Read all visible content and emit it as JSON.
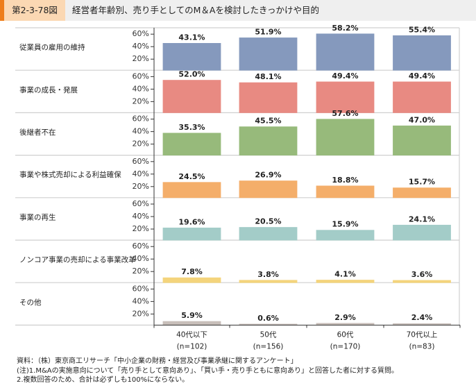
{
  "header": {
    "figure_number": "第2-3-78図",
    "title": "経営者年齢別、売り手としてのM＆Aを検討したきっかけや目的"
  },
  "colors": {
    "accent": "#ee7d1a",
    "tag_bg": "#fbd8b3",
    "header_bg": "#efefef"
  },
  "chart_data": {
    "type": "bar",
    "title": "経営者年齢別、売り手としてのM＆Aを検討したきっかけや目的",
    "categories": [
      "40代以下",
      "50代",
      "60代",
      "70代以上"
    ],
    "category_n": [
      "(n=102)",
      "(n=156)",
      "(n=170)",
      "(n=83)"
    ],
    "ylim": [
      0,
      65
    ],
    "yticks": [
      20,
      40,
      60
    ],
    "ytick_labels": [
      "20%",
      "40%",
      "60%"
    ],
    "grid": false,
    "legend": "none",
    "series": [
      {
        "name": "従業員の雇用の維持",
        "color": "#8599bd",
        "values": [
          43.1,
          51.9,
          58.2,
          55.4
        ],
        "labels": [
          "43.1%",
          "51.9%",
          "58.2%",
          "55.4%"
        ]
      },
      {
        "name": "事業の成長・発展",
        "color": "#e88a82",
        "values": [
          52.0,
          48.1,
          49.4,
          49.4
        ],
        "labels": [
          "52.0%",
          "48.1%",
          "49.4%",
          "49.4%"
        ]
      },
      {
        "name": "後継者不在",
        "color": "#97ba7b",
        "values": [
          35.3,
          45.5,
          57.6,
          47.0
        ],
        "labels": [
          "35.3%",
          "45.5%",
          "57.6%",
          "47.0%"
        ]
      },
      {
        "name": "事業や株式売却による利益確保",
        "color": "#f4ae6a",
        "values": [
          24.5,
          26.9,
          18.8,
          15.7
        ],
        "labels": [
          "24.5%",
          "26.9%",
          "18.8%",
          "15.7%"
        ]
      },
      {
        "name": "事業の再生",
        "color": "#a3ccc8",
        "values": [
          19.6,
          20.5,
          15.9,
          24.1
        ],
        "labels": [
          "19.6%",
          "20.5%",
          "15.9%",
          "24.1%"
        ]
      },
      {
        "name": "ノンコア事業の売却による事業改革",
        "color": "#f4d47c",
        "values": [
          7.8,
          3.8,
          4.1,
          3.6
        ],
        "labels": [
          "7.8%",
          "3.8%",
          "4.1%",
          "3.6%"
        ]
      },
      {
        "name": "その他",
        "color": "#c8bfba",
        "values": [
          5.9,
          0.6,
          2.9,
          2.4
        ],
        "labels": [
          "5.9%",
          "0.6%",
          "2.9%",
          "2.4%"
        ]
      }
    ]
  },
  "footer": {
    "source": "資料：（株）東京商工リサーチ「中小企業の財務・経営及び事業承継に関するアンケート」",
    "note1": "(注)1.M&Aの実施意向について「売り手として意向あり」、「買い手・売り手ともに意向あり」と回答した者に対する質問。",
    "note2": "2.複数回答のため、合計は必ずしも100%にならない。"
  }
}
